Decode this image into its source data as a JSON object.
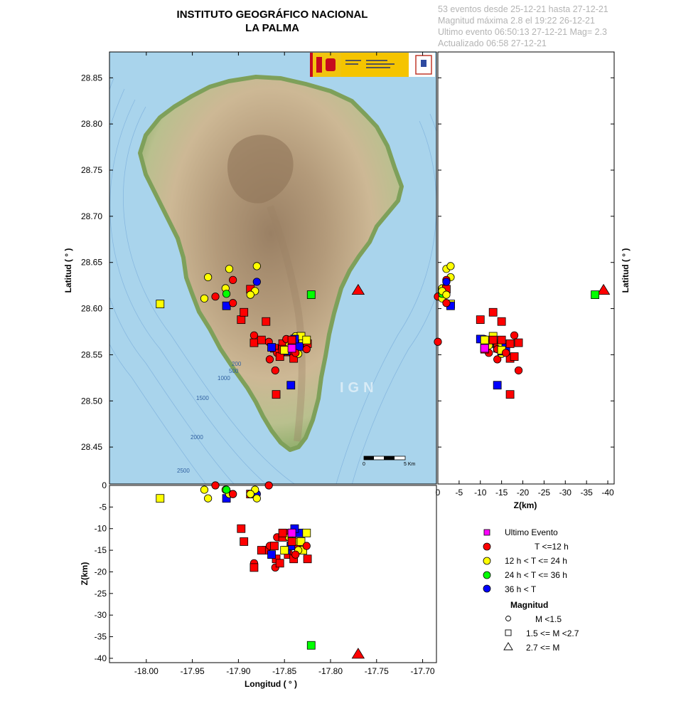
{
  "header": {
    "title_line1": "INSTITUTO GEOGRÁFICO NACIONAL",
    "title_line2": "LA PALMA",
    "info_lines": [
      "53 eventos desde 25-12-21 hasta 27-12-21",
      "Magnitud máxima 2.8 el 19:22 26-12-21",
      "Ultimo evento   06:50:13 27-12-21   Mag= 2.3",
      "Actualizado   06:58  27-12-21"
    ]
  },
  "map": {
    "watermark": "IGN",
    "contour_labels": [
      "200",
      "500",
      "1000",
      "1500",
      "2000",
      "2500"
    ],
    "scale_labels": [
      "0",
      "5 Km"
    ]
  },
  "colors": {
    "last": "#ff00ff",
    "lt12": "#ff0000",
    "12to24": "#ffff00",
    "24to36": "#00ff00",
    "gt36": "#0000ff",
    "sea": "#a9d4ec",
    "frame": "#000000"
  },
  "chart_data": [
    {
      "type": "scatter",
      "panel": "map",
      "xlabel": "Longitud ( ° )",
      "ylabel": "Latitud ( ° )",
      "xlim": [
        -18.04,
        -17.685
      ],
      "ylim": [
        28.41,
        28.878
      ],
      "xticks": [
        "-18.00",
        "-17.95",
        "-17.90",
        "-17.85",
        "-17.80",
        "-17.75",
        "-17.70"
      ],
      "xtick_values": [
        -18.0,
        -17.95,
        -17.9,
        -17.85,
        -17.8,
        -17.75,
        -17.7
      ],
      "yticks": [
        "28.45",
        "28.50",
        "28.55",
        "28.60",
        "28.65",
        "28.70",
        "28.75",
        "28.80",
        "28.85"
      ],
      "ytick_values": [
        28.45,
        28.5,
        28.55,
        28.6,
        28.65,
        28.7,
        28.75,
        28.8,
        28.85
      ]
    },
    {
      "type": "scatter",
      "panel": "lat-depth",
      "xlabel": "Z(km)",
      "ylabel": "Latitud ( ° )",
      "xlim": [
        0,
        -41.5
      ],
      "ylim": [
        28.41,
        28.878
      ],
      "xticks": [
        "0",
        "-5",
        "-10",
        "-15",
        "-20",
        "-25",
        "-30",
        "-35",
        "-40"
      ],
      "xtick_values": [
        0,
        -5,
        -10,
        -15,
        -20,
        -25,
        -30,
        -35,
        -40
      ]
    },
    {
      "type": "scatter",
      "panel": "depth-lon",
      "xlabel": "Longitud ( ° )",
      "ylabel": "Z(km)",
      "xlim": [
        -18.04,
        -17.685
      ],
      "ylim": [
        -41,
        0
      ],
      "yticks": [
        "0",
        "-5",
        "-10",
        "-15",
        "-20",
        "-25",
        "-30",
        "-35",
        "-40"
      ],
      "ytick_values": [
        0,
        -5,
        -10,
        -15,
        -20,
        -25,
        -30,
        -35,
        -40
      ]
    },
    {
      "type": "scatter",
      "panel": "events",
      "fields": [
        "lon",
        "lat",
        "depth_km",
        "age_class",
        "mag_class"
      ],
      "events": [
        [
          -17.842,
          28.557,
          -11,
          "last",
          "sq"
        ],
        [
          -17.77,
          28.62,
          -39,
          "lt12",
          "tri"
        ],
        [
          -17.821,
          28.615,
          -37,
          "24to36",
          "sq"
        ],
        [
          -17.985,
          28.605,
          -3,
          "12to24",
          "sq"
        ],
        [
          -17.913,
          28.603,
          -3,
          "gt36",
          "sq"
        ],
        [
          -17.925,
          28.613,
          0,
          "lt12",
          "ci"
        ],
        [
          -17.937,
          28.611,
          -1,
          "12to24",
          "ci"
        ],
        [
          -17.933,
          28.634,
          -3,
          "12to24",
          "ci"
        ],
        [
          -17.91,
          28.643,
          -2,
          "12to24",
          "ci"
        ],
        [
          -17.914,
          28.622,
          -1,
          "12to24",
          "ci"
        ],
        [
          -17.913,
          28.616,
          -1,
          "24to36",
          "ci"
        ],
        [
          -17.906,
          28.631,
          -2,
          "lt12",
          "ci"
        ],
        [
          -17.906,
          28.606,
          -2,
          "lt12",
          "ci"
        ],
        [
          -17.887,
          28.621,
          -2,
          "lt12",
          "sq"
        ],
        [
          -17.88,
          28.629,
          -2,
          "gt36",
          "ci"
        ],
        [
          -17.882,
          28.619,
          -1,
          "12to24",
          "ci"
        ],
        [
          -17.887,
          28.615,
          -2,
          "12to24",
          "ci"
        ],
        [
          -17.88,
          28.646,
          -3,
          "12to24",
          "ci"
        ],
        [
          -17.867,
          28.564,
          0,
          "lt12",
          "ci"
        ],
        [
          -17.897,
          28.588,
          -10,
          "lt12",
          "sq"
        ],
        [
          -17.894,
          28.596,
          -13,
          "lt12",
          "sq"
        ],
        [
          -17.87,
          28.586,
          -15,
          "lt12",
          "sq"
        ],
        [
          -17.883,
          28.571,
          -18,
          "lt12",
          "ci"
        ],
        [
          -17.883,
          28.563,
          -19,
          "lt12",
          "sq"
        ],
        [
          -17.866,
          28.545,
          -14,
          "lt12",
          "ci"
        ],
        [
          -17.86,
          28.533,
          -19,
          "lt12",
          "ci"
        ],
        [
          -17.859,
          28.507,
          -17,
          "lt12",
          "sq"
        ],
        [
          -17.861,
          28.557,
          -14,
          "lt12",
          "sq"
        ],
        [
          -17.858,
          28.552,
          -12,
          "lt12",
          "ci"
        ],
        [
          -17.852,
          28.562,
          -12,
          "lt12",
          "sq"
        ],
        [
          -17.848,
          28.567,
          -11,
          "lt12",
          "ci"
        ],
        [
          -17.846,
          28.553,
          -16,
          "lt12",
          "sq"
        ],
        [
          -17.84,
          28.546,
          -17,
          "lt12",
          "sq"
        ],
        [
          -17.836,
          28.56,
          -14,
          "lt12",
          "ci"
        ],
        [
          -17.838,
          28.57,
          -13,
          "12to24",
          "ci"
        ],
        [
          -17.832,
          28.57,
          -13,
          "12to24",
          "sq"
        ],
        [
          -17.83,
          28.562,
          -15,
          "12to24",
          "sq"
        ],
        [
          -17.845,
          28.56,
          -12,
          "12to24",
          "ci"
        ],
        [
          -17.835,
          28.551,
          -15,
          "12to24",
          "ci"
        ],
        [
          -17.842,
          28.557,
          -11,
          "12to24",
          "sq"
        ],
        [
          -17.834,
          28.559,
          -11,
          "gt36",
          "sq"
        ],
        [
          -17.839,
          28.567,
          -10,
          "gt36",
          "sq"
        ],
        [
          -17.848,
          28.554,
          -15,
          "gt36",
          "sq"
        ],
        [
          -17.864,
          28.558,
          -16,
          "gt36",
          "sq"
        ],
        [
          -17.843,
          28.517,
          -14,
          "gt36",
          "sq"
        ],
        [
          -17.825,
          28.562,
          -17,
          "lt12",
          "sq"
        ],
        [
          -17.826,
          28.556,
          -14,
          "lt12",
          "ci"
        ],
        [
          -17.855,
          28.548,
          -18,
          "lt12",
          "sq"
        ],
        [
          -17.875,
          28.566,
          -15,
          "lt12",
          "sq"
        ],
        [
          -17.842,
          28.566,
          -13,
          "lt12",
          "sq"
        ],
        [
          -17.826,
          28.566,
          -11,
          "12to24",
          "sq"
        ],
        [
          -17.852,
          28.556,
          -11,
          "lt12",
          "sq"
        ],
        [
          -17.85,
          28.555,
          -15,
          "12to24",
          "sq"
        ],
        [
          -17.838,
          28.552,
          -16,
          "lt12",
          "ci"
        ]
      ]
    }
  ],
  "legend": {
    "age_items": [
      {
        "key": "last",
        "label": "Ultimo Evento"
      },
      {
        "key": "lt12",
        "label": "T <=12 h"
      },
      {
        "key": "12to24",
        "label": "12 h  < T <= 24 h"
      },
      {
        "key": "24to36",
        "label": "24 h  < T <= 36 h"
      },
      {
        "key": "gt36",
        "label": "36 h <  T"
      }
    ],
    "magnitude_title": "Magnitud",
    "magnitude_items": [
      {
        "shape": "ci",
        "label": "M <1.5"
      },
      {
        "shape": "sq",
        "label": "1.5 <= M <2.7"
      },
      {
        "shape": "tri",
        "label": "2.7 <= M"
      }
    ]
  }
}
